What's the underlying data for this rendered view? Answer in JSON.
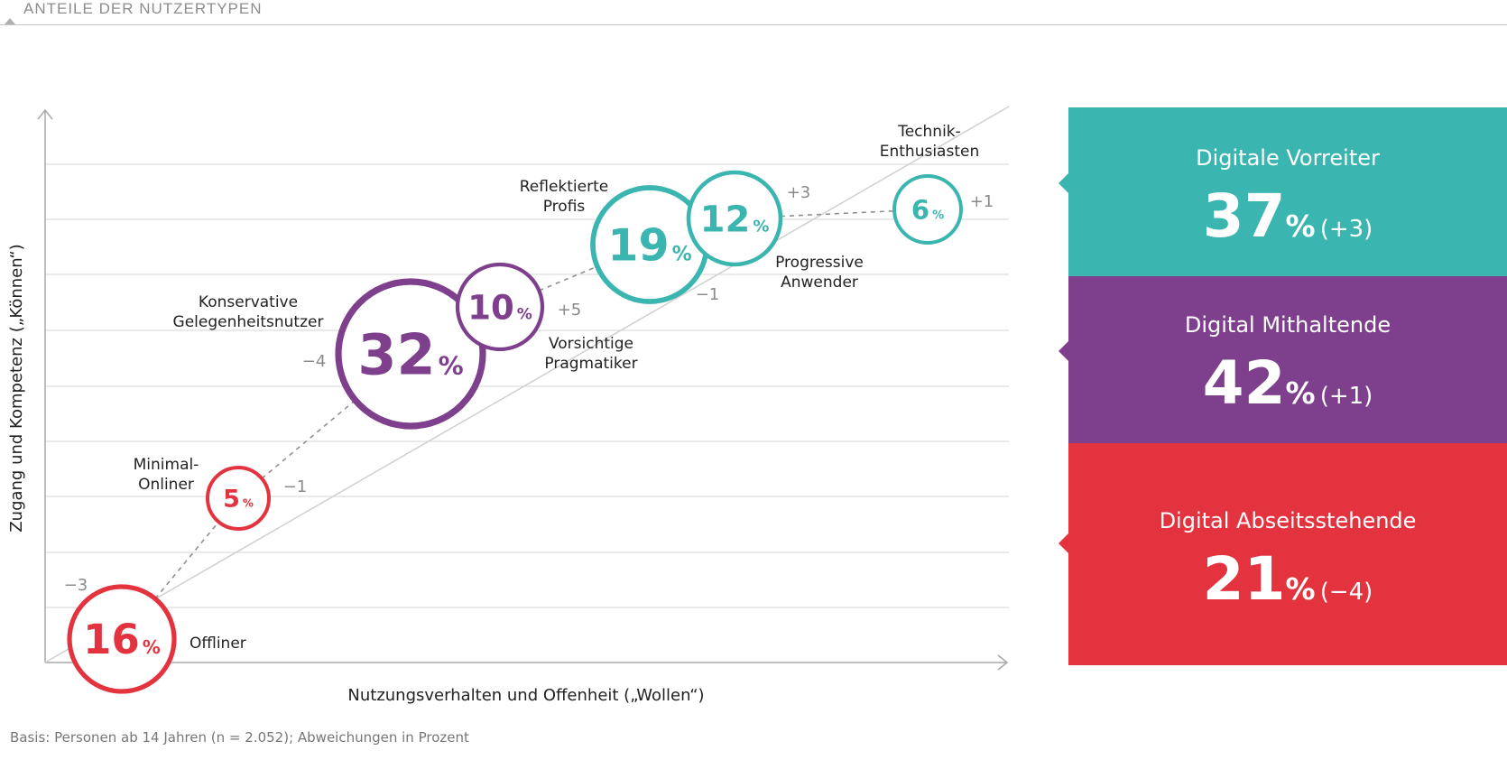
{
  "header": {
    "title": "ANTEILE DER NUTZERTYPEN"
  },
  "chart_data": {
    "type": "scatter",
    "title": "ANTEILE DER NUTZERTYPEN",
    "xlabel": "Nutzungsverhalten und Offenheit („Wollen“)",
    "ylabel": "Zugang und Kompetenz („Können“)",
    "grid": true,
    "legend": "right",
    "series": [
      {
        "label": "Offliner",
        "value": 16,
        "change": "−3",
        "group": "absent"
      },
      {
        "label": "Minimal-Onliner",
        "value": 5,
        "change": "−1",
        "group": "absent"
      },
      {
        "label": "Konservative Gelegenheitsnutzer",
        "value": 32,
        "change": "−4",
        "group": "keeping"
      },
      {
        "label": "Vorsichtige Pragmatiker",
        "value": 10,
        "change": "+5",
        "group": "keeping"
      },
      {
        "label": "Reflektierte Profis",
        "value": 19,
        "change": "−1",
        "group": "pioneer"
      },
      {
        "label": "Progressive Anwender",
        "value": 12,
        "change": "+3",
        "group": "pioneer"
      },
      {
        "label": "Technik-Enthusiasten",
        "value": 6,
        "change": "+1",
        "group": "pioneer"
      }
    ],
    "pct_sign": "%",
    "groups": [
      {
        "key": "pioneer",
        "name": "Digitale Vorreiter",
        "value": "37",
        "pct": "%",
        "change": "(+3)",
        "color": "#3bb5b0"
      },
      {
        "key": "keeping",
        "name": "Digital Mithaltende",
        "value": "42",
        "pct": "%",
        "change": "(+1)",
        "color": "#7e3f8d"
      },
      {
        "key": "absent",
        "name": "Digital Abseitsstehende",
        "value": "21",
        "pct": "%",
        "change": "(−4)",
        "color": "#e3333f"
      }
    ]
  },
  "footnote": "Basis: Personen ab 14 Jahren (n = 2.052); Abweichungen in Prozent"
}
